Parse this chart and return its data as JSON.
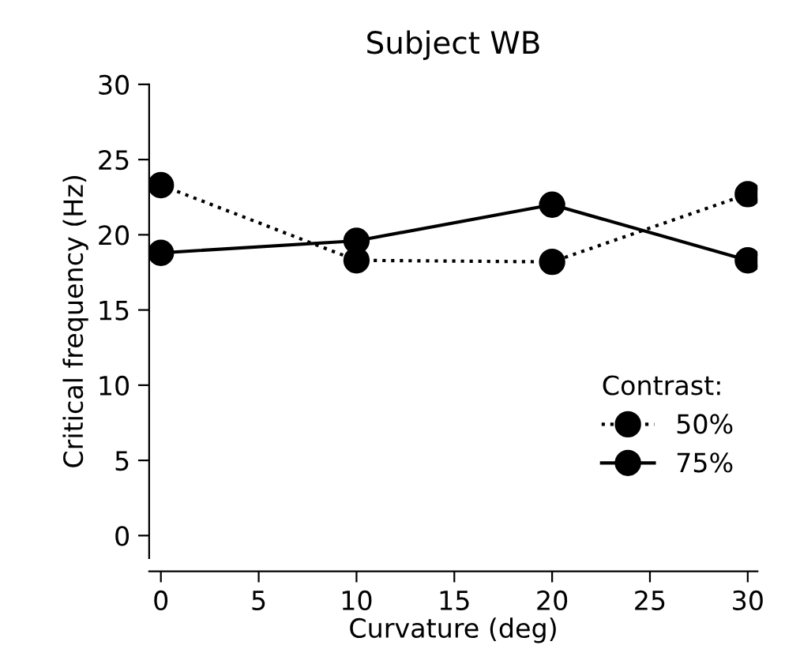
{
  "chart_data": {
    "type": "line",
    "title": "Subject WB",
    "xlabel": "Curvature (deg)",
    "ylabel": "Critical frequency (Hz)",
    "legend_title": "Contrast:",
    "legend": "bottom right",
    "marker": "circle",
    "grid": false,
    "x": [
      0,
      10,
      20,
      30
    ],
    "xlim": [
      -0.6,
      30.5
    ],
    "xticks": [
      0,
      5,
      10,
      15,
      20,
      25,
      30
    ],
    "ylim": [
      -1.5,
      30
    ],
    "yticks": [
      0,
      5,
      10,
      15,
      20,
      25,
      30
    ],
    "series": [
      {
        "name": "50%",
        "color": "#000000",
        "line_style": "dotted",
        "values": [
          23.3,
          18.3,
          18.2,
          22.7
        ]
      },
      {
        "name": "75%",
        "color": "#000000",
        "line_style": "solid",
        "values": [
          18.8,
          19.6,
          22.0,
          18.3
        ]
      }
    ]
  }
}
